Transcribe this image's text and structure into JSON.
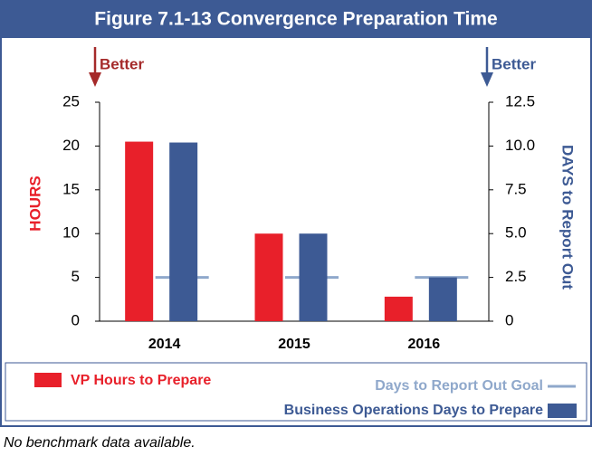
{
  "chart_data": {
    "type": "bar",
    "title": "Figure 7.1-13 Convergence Preparation Time",
    "ylabel": "HOURS",
    "y2label": "DAYS to Report Out",
    "annotations": [
      "Better",
      "Better"
    ],
    "footnote": "No benchmark data available.",
    "categories": [
      "2014",
      "2015",
      "2016"
    ],
    "series": [
      {
        "name": "VP Hours to Prepare",
        "color": "#e8202a",
        "values": [
          20.5,
          10,
          2.8
        ]
      },
      {
        "name": "Days to Report Out Goal",
        "color": "#8fa8cb",
        "values": [
          2.5,
          2.5,
          2.5
        ],
        "axis": "y2",
        "marker": "dash"
      },
      {
        "name": "Business Operations Days to Prepare",
        "color": "#3d5a94",
        "values": [
          10.2,
          5,
          2.5
        ],
        "axis": "y2"
      }
    ],
    "ylim": [
      0,
      25
    ],
    "yticks": [
      0,
      5,
      10,
      15,
      20,
      25
    ],
    "y2lim": [
      0,
      12.5
    ],
    "y2ticks": [
      0,
      2.5,
      {
        "value": 5,
        "label": "5.0"
      },
      7.5,
      {
        "value": 10,
        "label": "10.0"
      },
      12.5
    ],
    "grid": false
  }
}
